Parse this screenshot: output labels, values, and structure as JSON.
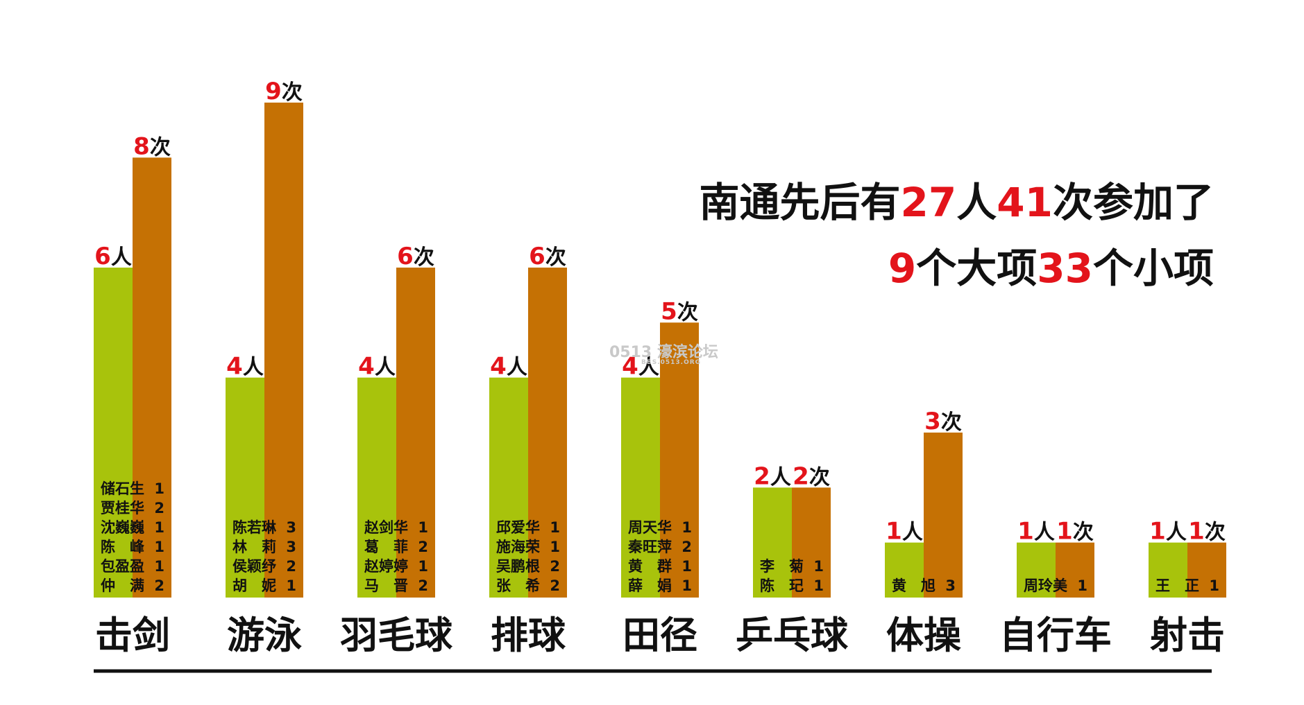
{
  "headline": {
    "line1": [
      "南通先后有",
      "27",
      "人",
      "41",
      "次参加了"
    ],
    "line2": [
      "9",
      "个大项",
      "33",
      "个小项"
    ]
  },
  "watermark": {
    "main": "0513 濠滨论坛",
    "sub": "BBS.0513.ORG"
  },
  "colors": {
    "persons": "#a8c30c",
    "times": "#c57104",
    "number": "#e3141b",
    "text": "#111111"
  },
  "chart_data": {
    "type": "bar",
    "categories": [
      "击剑",
      "游泳",
      "羽毛球",
      "排球",
      "田径",
      "乒乓球",
      "体操",
      "自行车",
      "射击"
    ],
    "series": [
      {
        "name": "人",
        "values": [
          6,
          4,
          4,
          4,
          4,
          2,
          1,
          1,
          1
        ]
      },
      {
        "name": "次",
        "values": [
          8,
          9,
          6,
          6,
          5,
          2,
          3,
          1,
          1
        ]
      }
    ],
    "ylim": [
      0,
      9
    ],
    "grid": false,
    "athletes": [
      [
        [
          "储石生",
          "1"
        ],
        [
          "贾桂华",
          "2"
        ],
        [
          "沈巍巍",
          "1"
        ],
        [
          "陈　峰",
          "1"
        ],
        [
          "包盈盈",
          "1"
        ],
        [
          "仲　满",
          "2"
        ]
      ],
      [
        [
          "陈若琳",
          "3"
        ],
        [
          "林　莉",
          "3"
        ],
        [
          "侯颖纾",
          "2"
        ],
        [
          "胡　妮",
          "1"
        ]
      ],
      [
        [
          "赵剑华",
          "1"
        ],
        [
          "葛　菲",
          "2"
        ],
        [
          "赵婷婷",
          "1"
        ],
        [
          "马　晋",
          "2"
        ]
      ],
      [
        [
          "邱爱华",
          "1"
        ],
        [
          "施海荣",
          "1"
        ],
        [
          "吴鹏根",
          "2"
        ],
        [
          "张　希",
          "2"
        ]
      ],
      [
        [
          "周天华",
          "1"
        ],
        [
          "秦旺萍",
          "2"
        ],
        [
          "黄　群",
          "1"
        ],
        [
          "薛　娟",
          "1"
        ]
      ],
      [
        [
          "李　菊",
          "1"
        ],
        [
          "陈　玘",
          "1"
        ]
      ],
      [
        [
          "黄　旭",
          "3"
        ]
      ],
      [
        [
          "周玲美",
          "1"
        ]
      ],
      [
        [
          "王　正",
          "1"
        ]
      ]
    ]
  }
}
